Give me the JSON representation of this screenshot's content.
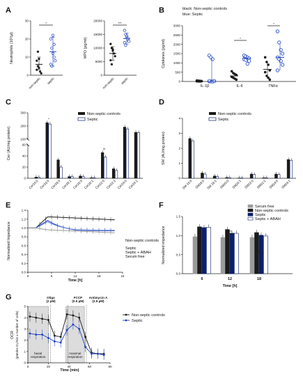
{
  "panels": {
    "A": "A",
    "B": "B",
    "C": "C",
    "D": "D",
    "E": "E",
    "F": "F",
    "G": "G"
  },
  "colors": {
    "black": "#1a1a1a",
    "blue": "#1b3fbf",
    "grey": "#9a9a9a",
    "navy": "#0b1f6b",
    "white": "#ffffff"
  },
  "chart_data": [
    {
      "id": "A1",
      "type": "scatter",
      "ylabel": "Neutrophils (10³/µl)",
      "categories": [
        "non-septic",
        "septic"
      ],
      "ylim": [
        0,
        30
      ],
      "yticks": [
        0,
        10,
        20,
        30
      ],
      "points": [
        [
          8,
          5,
          4,
          2,
          1,
          3,
          13,
          9
        ],
        [
          20,
          15,
          12,
          10,
          8,
          6,
          5,
          22,
          17
        ]
      ],
      "mean": [
        6,
        13
      ],
      "sd": [
        [
          3,
          10
        ],
        [
          5,
          21
        ]
      ],
      "sig": "*"
    },
    {
      "id": "A2",
      "type": "scatter",
      "ylabel": "MPO (pg/ml)",
      "categories": [
        "non-septic",
        "septic"
      ],
      "ylim": [
        0,
        20000
      ],
      "yticks": [
        0,
        5000,
        10000,
        15000,
        20000
      ],
      "points": [
        [
          11500,
          10000,
          9000,
          8000,
          7000,
          5500,
          4000,
          9500
        ],
        [
          16500,
          15000,
          14000,
          13000,
          12500,
          12000,
          11000,
          14500,
          13500
        ]
      ],
      "mean": [
        8000,
        13500
      ],
      "sd": [
        [
          5500,
          10500
        ],
        [
          11500,
          15500
        ]
      ],
      "sig": "***"
    },
    {
      "id": "B",
      "type": "scatter",
      "legend_title": "black: Non-septic controls",
      "legend_title2": "blue: Septic",
      "ylabel": "Cytokines (pg/ml)",
      "categories": [
        "IL-1β",
        "IL-6",
        "TNFα"
      ],
      "ylim": [
        0,
        3000
      ],
      "yticks": [
        0,
        500,
        1000,
        1500,
        2000,
        2500,
        3000
      ],
      "groups": [
        {
          "ctrl": [
            50,
            40,
            30,
            20,
            10,
            5,
            0,
            15,
            25
          ],
          "sept": [
            1400,
            1300,
            1200,
            20,
            10,
            5,
            0,
            15,
            30
          ],
          "mctrl": 5,
          "msept": 10,
          "sdsept": [
            0,
            1300
          ]
        },
        {
          "ctrl": [
            550,
            450,
            400,
            350,
            250,
            200,
            150,
            100
          ],
          "sept": [
            1400,
            1350,
            1300,
            1250,
            1200,
            1150,
            950,
            1100
          ],
          "mctrl": 300,
          "msept": 1250,
          "sdsept": [
            1150,
            1400
          ],
          "sig": "*"
        },
        {
          "ctrl": [
            1300,
            1050,
            900,
            600,
            500,
            300,
            200,
            100
          ],
          "sept": [
            2700,
            2100,
            1700,
            1500,
            1300,
            1200,
            1100,
            900,
            600
          ],
          "mctrl": 650,
          "msept": 1300,
          "sdctrl": [
            200,
            1050
          ],
          "sdsept": [
            600,
            2000
          ],
          "sig": "*"
        }
      ]
    },
    {
      "id": "C",
      "type": "bar",
      "ylabel": "Cer (AU/mg protein)",
      "categories": [
        "Cer14:0",
        "Cer16:0",
        "Cer18:0",
        "Cer18:1",
        "Cer20:0",
        "Cer20:1",
        "Cer22:0",
        "Cer22:1",
        "Cer24:0",
        "Cer24:1"
      ],
      "series": [
        {
          "name": "Non-septic controls",
          "values": [
            2,
            225,
            33,
            3,
            4,
            1,
            46,
            17,
            192,
            152
          ]
        },
        {
          "name": "Septic",
          "values": [
            2,
            215,
            20,
            3,
            3,
            1,
            38,
            14,
            178,
            150
          ]
        }
      ],
      "yticks": [
        "0",
        "20",
        "40",
        "60",
        "100",
        "200",
        "300"
      ],
      "markers": {
        "1": "*",
        "6": "a"
      }
    },
    {
      "id": "D",
      "type": "bar",
      "ylabel": "SM (AU/mg protein)",
      "categories": [
        "SM 16:0",
        "SM18:0",
        "SM 16:1",
        "SM20:0",
        "SM20:1",
        "SM22:0",
        "SM22:1",
        "SM24:0",
        "SM24:1"
      ],
      "series": [
        {
          "name": "Non-septic controls",
          "values": [
            2.65,
            0.35,
            0.15,
            0.05,
            0.02,
            0.28,
            0.03,
            0.28,
            1.25
          ]
        },
        {
          "name": "Septic",
          "values": [
            2.5,
            0.28,
            0.12,
            0.04,
            0.02,
            0.25,
            0.03,
            0.25,
            1.2
          ]
        }
      ],
      "ylim": [
        0,
        4
      ],
      "yticks": [
        0,
        1,
        2,
        3,
        4
      ]
    },
    {
      "id": "E",
      "type": "line",
      "xlabel": "Time [h]",
      "ylabel": "Normalized Impedance",
      "xlim": [
        0,
        24
      ],
      "ylim": [
        0,
        1.4
      ],
      "xticks": [
        0,
        6,
        12,
        18,
        24
      ],
      "yticks": [
        0,
        0.2,
        0.4,
        0.6,
        0.8,
        1.0,
        1.2,
        1.4
      ],
      "series": [
        {
          "name": "Non-septic controls",
          "key": "ctrl"
        },
        {
          "name": "Septic",
          "key": "sept"
        },
        {
          "name": "Septic + ABAH",
          "key": "abah"
        },
        {
          "name": "Serum free",
          "key": "free"
        }
      ]
    },
    {
      "id": "F",
      "type": "bar",
      "xlabel": "Time [h]",
      "ylabel": "Normalized impedance",
      "categories": [
        "6",
        "12",
        "18"
      ],
      "ylim": [
        0,
        1.5
      ],
      "yticks": [
        0,
        0.5,
        1.0,
        1.5
      ],
      "series": [
        {
          "name": "Serum free",
          "values": [
            0.97,
            0.95,
            0.95
          ]
        },
        {
          "name": "Non-septic controls",
          "values": [
            1.23,
            1.16,
            1.08
          ]
        },
        {
          "name": "Septic",
          "values": [
            1.21,
            1.06,
            1.01
          ]
        },
        {
          "name": "Septic + ABAH",
          "values": [
            1.22,
            1.06,
            0.99
          ]
        }
      ],
      "sig": {
        "12": "***",
        "18": "*"
      }
    },
    {
      "id": "G",
      "type": "line",
      "xlabel": "Time (min)",
      "ylabel": "OCR",
      "ylabel2": "(pMoles O₂/min x number of cells)",
      "xlim": [
        0,
        80
      ],
      "ylim": [
        0,
        5
      ],
      "xticks": [
        0,
        20,
        40,
        60,
        80
      ],
      "yticks": [
        0,
        1,
        2,
        3,
        4,
        5
      ],
      "x": [
        2,
        8,
        14,
        20,
        26,
        32,
        38,
        44,
        50,
        56,
        62,
        68,
        74
      ],
      "series": [
        {
          "name": "Non-septic controls",
          "values": [
            4.1,
            4.0,
            3.9,
            3.8,
            2.4,
            2.3,
            4.3,
            4.2,
            4.0,
            2.3,
            0.9,
            0.8,
            0.8
          ]
        },
        {
          "name": "Septic",
          "values": [
            2.6,
            2.5,
            2.5,
            2.2,
            1.9,
            1.8,
            2.9,
            3.4,
            3.0,
            1.4,
            0.8,
            0.8,
            0.7
          ]
        }
      ],
      "injections": [
        {
          "label": "Oligo",
          "dose": "(2 µM)"
        },
        {
          "label": "FCCP",
          "dose": "(0.5 µM)"
        },
        {
          "label": "Antimycin A",
          "dose": "(2.5 µM)"
        }
      ],
      "regions": [
        {
          "label": "basal",
          "label2": "respiration"
        },
        {
          "label": "maximal",
          "label2": "respiration"
        }
      ]
    }
  ]
}
